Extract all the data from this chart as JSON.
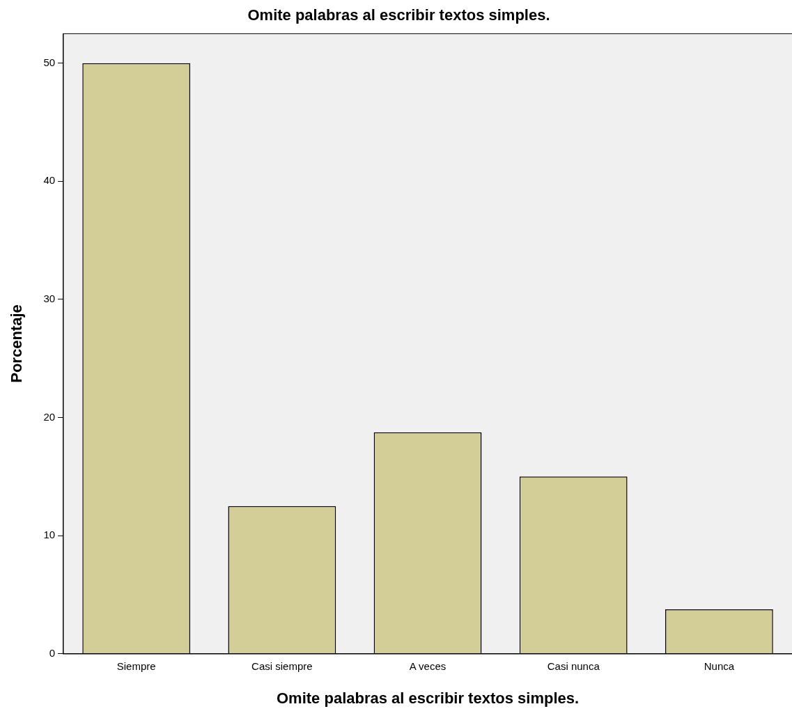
{
  "chart_data": {
    "type": "bar",
    "title": "Omite palabras al escribir textos simples.",
    "xlabel": "Omite palabras al escribir textos simples.",
    "ylabel": "Porcentaje",
    "categories": [
      "Siempre",
      "Casi siempre",
      "A veces",
      "Casi nunca",
      "Nunca"
    ],
    "values": [
      50,
      12.5,
      18.75,
      15,
      3.75
    ],
    "color": "#d3ce97",
    "ylim": [
      0,
      52.5
    ],
    "yticks": [
      0,
      10,
      20,
      30,
      40,
      50
    ],
    "grid": false,
    "legend": false
  }
}
